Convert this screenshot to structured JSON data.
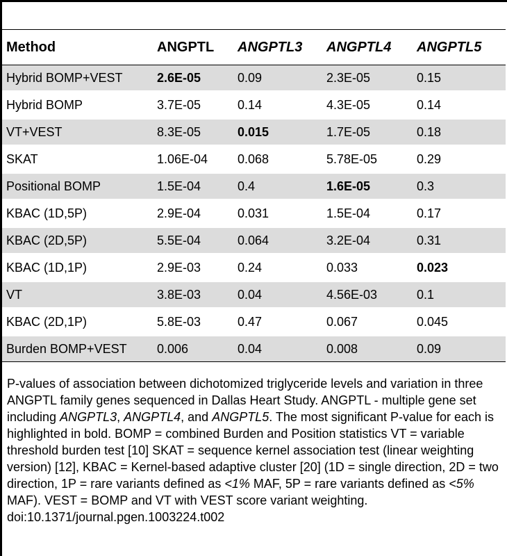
{
  "table": {
    "headers": [
      {
        "text": "Method",
        "italic": false
      },
      {
        "text": "ANGPTL",
        "italic": false
      },
      {
        "text": "ANGPTL3",
        "italic": true
      },
      {
        "text": "ANGPTL4",
        "italic": true
      },
      {
        "text": "ANGPTL5",
        "italic": true
      }
    ],
    "rows": [
      {
        "cells": [
          "Hybrid BOMP+VEST",
          "2.6E-05",
          "0.09",
          "2.3E-05",
          "0.15"
        ],
        "bold": [
          false,
          true,
          false,
          false,
          false
        ],
        "shaded": true
      },
      {
        "cells": [
          "Hybrid BOMP",
          "3.7E-05",
          "0.14",
          "4.3E-05",
          "0.14"
        ],
        "bold": [
          false,
          false,
          false,
          false,
          false
        ],
        "shaded": false
      },
      {
        "cells": [
          "VT+VEST",
          "8.3E-05",
          "0.015",
          "1.7E-05",
          "0.18"
        ],
        "bold": [
          false,
          false,
          true,
          false,
          false
        ],
        "shaded": true
      },
      {
        "cells": [
          "SKAT",
          "1.06E-04",
          "0.068",
          "5.78E-05",
          "0.29"
        ],
        "bold": [
          false,
          false,
          false,
          false,
          false
        ],
        "shaded": false
      },
      {
        "cells": [
          "Positional BOMP",
          "1.5E-04",
          "0.4",
          "1.6E-05",
          "0.3"
        ],
        "bold": [
          false,
          false,
          false,
          true,
          false
        ],
        "shaded": true
      },
      {
        "cells": [
          "KBAC (1D,5P)",
          "2.9E-04",
          "0.031",
          "1.5E-04",
          "0.17"
        ],
        "bold": [
          false,
          false,
          false,
          false,
          false
        ],
        "shaded": false
      },
      {
        "cells": [
          "KBAC (2D,5P)",
          "5.5E-04",
          "0.064",
          "3.2E-04",
          "0.31"
        ],
        "bold": [
          false,
          false,
          false,
          false,
          false
        ],
        "shaded": true
      },
      {
        "cells": [
          "KBAC (1D,1P)",
          "2.9E-03",
          "0.24",
          "0.033",
          "0.023"
        ],
        "bold": [
          false,
          false,
          false,
          false,
          true
        ],
        "shaded": false
      },
      {
        "cells": [
          "VT",
          "3.8E-03",
          "0.04",
          "4.56E-03",
          "0.1"
        ],
        "bold": [
          false,
          false,
          false,
          false,
          false
        ],
        "shaded": true
      },
      {
        "cells": [
          "KBAC (2D,1P)",
          "5.8E-03",
          "0.47",
          "0.067",
          "0.045"
        ],
        "bold": [
          false,
          false,
          false,
          false,
          false
        ],
        "shaded": false
      },
      {
        "cells": [
          "Burden BOMP+VEST",
          "0.006",
          "0.04",
          "0.008",
          "0.09"
        ],
        "bold": [
          false,
          false,
          false,
          false,
          false
        ],
        "shaded": true
      }
    ]
  },
  "caption": {
    "part1": "P-values of association between dichotomized triglyceride levels and variation in three ANGPTL family genes sequenced in Dallas Heart Study. ANGPTL - multiple gene set including ",
    "gene1": "ANGPTL3",
    "sep1": ", ",
    "gene2": "ANGPTL4",
    "sep2": ", and ",
    "gene3": "ANGPTL5",
    "part2": ". The most significant P-value for each is highlighted in bold. BOMP = combined Burden and Position statistics VT = variable threshold burden test [10] SKAT = sequence kernel association test (linear weighting version) [12], KBAC = Kernel-based adaptive cluster [20] (1D = single direction, 2D = two direction, 1P = rare variants defined as ",
    "lt1": "<1%",
    "part3": " MAF, 5P = rare variants defined as ",
    "lt2": "<5%",
    "part4": " MAF). VEST = BOMP and VT with VEST score variant weighting.",
    "doi": "doi:10.1371/journal.pgen.1003224.t002"
  }
}
